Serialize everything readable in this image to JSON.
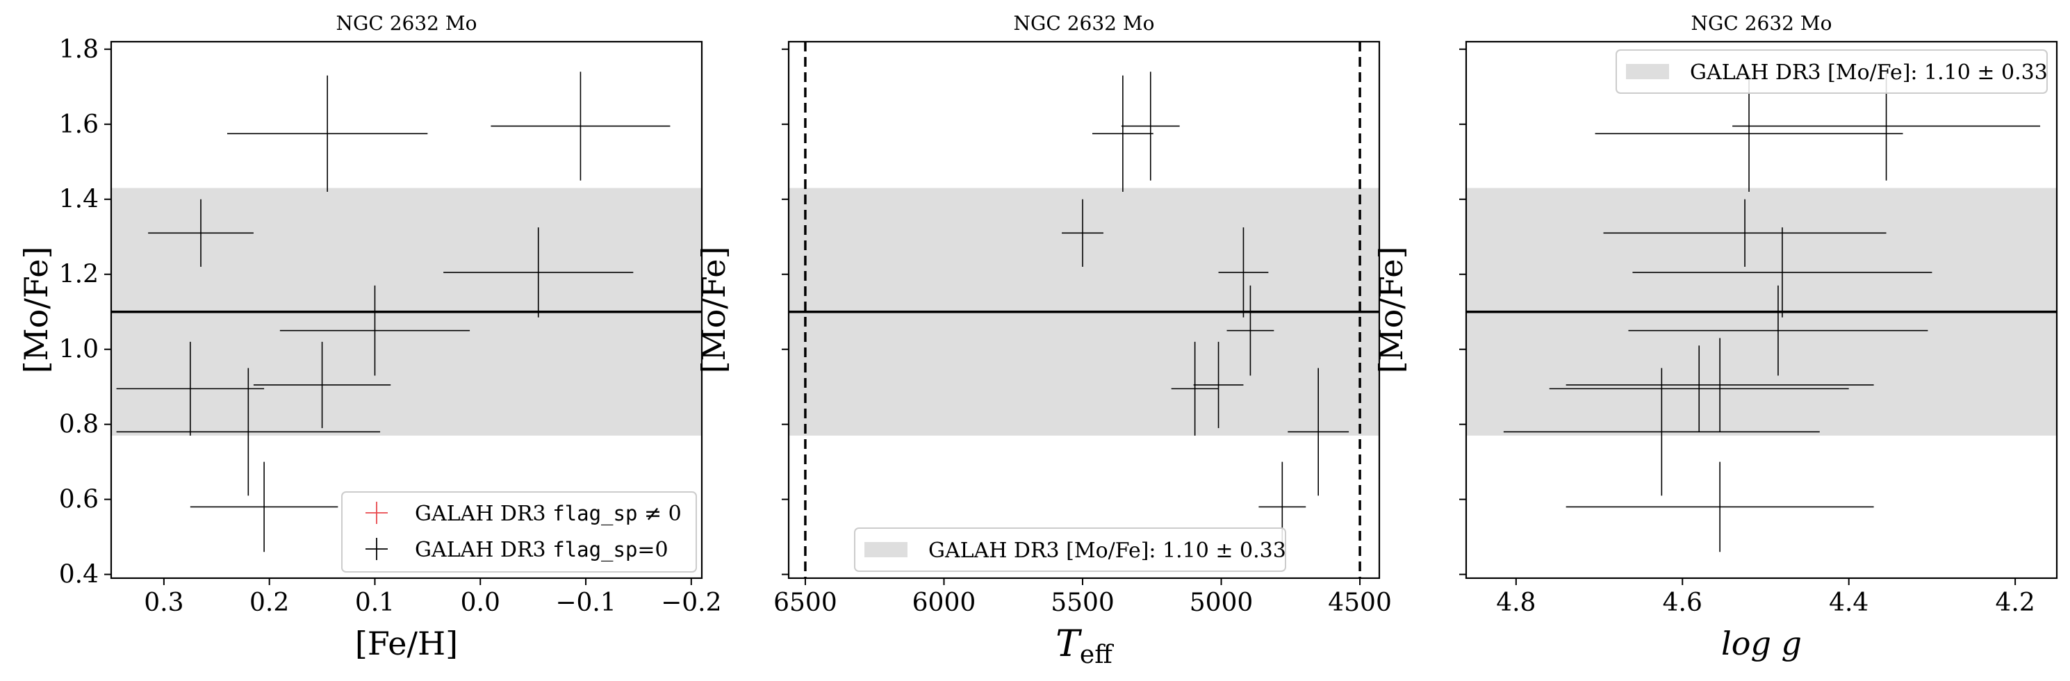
{
  "figure": {
    "colors": {
      "band": "#dedede",
      "errorbar": "#000000",
      "flagged": "#e8474b",
      "axis": "#000000",
      "mean_line": "#000000"
    }
  },
  "chart_data": [
    {
      "type": "scatter",
      "title": "NGC 2632 Mo",
      "xlabel": "[Fe/H]",
      "ylabel": "[Mo/Fe]",
      "xlim": [
        0.35,
        -0.21
      ],
      "ylim": [
        0.39,
        1.82
      ],
      "x_inverted": true,
      "xticks": [
        0.3,
        0.2,
        0.1,
        0.0,
        -0.1,
        -0.2
      ],
      "xtick_labels": [
        "0.3",
        "0.2",
        "0.1",
        "0.0",
        "−0.1",
        "−0.2"
      ],
      "yticks": [
        0.4,
        0.6,
        0.8,
        1.0,
        1.2,
        1.4,
        1.6,
        1.8
      ],
      "ytick_labels": [
        "0.4",
        "0.6",
        "0.8",
        "1.0",
        "1.2",
        "1.4",
        "1.6",
        "1.8"
      ],
      "band": {
        "center": 1.1,
        "err": 0.33
      },
      "mean_line": 1.1,
      "legend": {
        "position": "lower-right",
        "entries": [
          {
            "marker": "+",
            "color": "#e8474b",
            "label_prefix": "GALAH DR3 ",
            "label_code": "flag_sp",
            "label_suffix": " ≠ 0"
          },
          {
            "marker": "+",
            "color": "#000000",
            "label_prefix": "GALAH DR3 ",
            "label_code": "flag_sp",
            "label_suffix": "=0"
          }
        ]
      },
      "series": [
        {
          "name": "GALAH DR3 flag_sp=0",
          "points": [
            {
              "x": 0.145,
              "xerr": 0.095,
              "y": 1.575,
              "yerr": 0.155
            },
            {
              "x": -0.095,
              "xerr": 0.085,
              "y": 1.595,
              "yerr": 0.145
            },
            {
              "x": 0.265,
              "xerr": 0.05,
              "y": 1.31,
              "yerr": 0.09
            },
            {
              "x": -0.055,
              "xerr": 0.09,
              "y": 1.205,
              "yerr": 0.12
            },
            {
              "x": 0.1,
              "xerr": 0.09,
              "y": 1.05,
              "yerr": 0.12
            },
            {
              "x": 0.275,
              "xerr": 0.07,
              "y": 0.895,
              "yerr": 0.125
            },
            {
              "x": 0.15,
              "xerr": 0.065,
              "y": 0.905,
              "yerr": 0.115
            },
            {
              "x": 0.22,
              "xerr": 0.125,
              "y": 0.78,
              "yerr": 0.17
            },
            {
              "x": 0.205,
              "xerr": 0.07,
              "y": 0.58,
              "yerr": 0.12
            }
          ]
        }
      ]
    },
    {
      "type": "scatter",
      "title": "NGC 2632 Mo",
      "xlabel_main": "T",
      "xlabel_sub": "eff",
      "ylabel": "[Mo/Fe]",
      "xlim": [
        6560,
        4430
      ],
      "ylim": [
        0.39,
        1.82
      ],
      "x_inverted": true,
      "xticks": [
        6500,
        6000,
        5500,
        5000,
        4500
      ],
      "xtick_labels": [
        "6500",
        "6000",
        "5500",
        "5000",
        "4500"
      ],
      "yticks": [
        0.4,
        0.6,
        0.8,
        1.0,
        1.2,
        1.4,
        1.6,
        1.8
      ],
      "ytick_labels": [],
      "vlines": [
        6500,
        4500
      ],
      "band": {
        "center": 1.1,
        "err": 0.33
      },
      "mean_line": 1.1,
      "legend": {
        "position": "lower-center",
        "entries": [
          {
            "marker": "band",
            "color": "#dedede",
            "label_prefix": "GALAH DR3 [Mo/Fe]:  1.10 ± 0.33"
          }
        ]
      },
      "series": [
        {
          "name": "GALAH DR3 flag_sp=0",
          "points": [
            {
              "x": 5355,
              "xerr": 110,
              "y": 1.575,
              "yerr": 0.155
            },
            {
              "x": 5255,
              "xerr": 105,
              "y": 1.595,
              "yerr": 0.145
            },
            {
              "x": 5500,
              "xerr": 75,
              "y": 1.31,
              "yerr": 0.09
            },
            {
              "x": 4920,
              "xerr": 90,
              "y": 1.205,
              "yerr": 0.12
            },
            {
              "x": 4895,
              "xerr": 85,
              "y": 1.05,
              "yerr": 0.12
            },
            {
              "x": 5095,
              "xerr": 85,
              "y": 0.895,
              "yerr": 0.125
            },
            {
              "x": 5010,
              "xerr": 90,
              "y": 0.905,
              "yerr": 0.115
            },
            {
              "x": 4650,
              "xerr": 110,
              "y": 0.78,
              "yerr": 0.17
            },
            {
              "x": 4780,
              "xerr": 85,
              "y": 0.58,
              "yerr": 0.12
            }
          ]
        }
      ]
    },
    {
      "type": "scatter",
      "title": "NGC 2632 Mo",
      "xlabel": "log g",
      "ylabel": "[Mo/Fe]",
      "xlim": [
        4.86,
        4.15
      ],
      "ylim": [
        0.39,
        1.82
      ],
      "x_inverted": true,
      "xticks": [
        4.8,
        4.6,
        4.4,
        4.2
      ],
      "xtick_labels": [
        "4.8",
        "4.6",
        "4.4",
        "4.2"
      ],
      "yticks": [
        0.4,
        0.6,
        0.8,
        1.0,
        1.2,
        1.4,
        1.6,
        1.8
      ],
      "ytick_labels": [],
      "band": {
        "center": 1.1,
        "err": 0.33
      },
      "mean_line": 1.1,
      "legend": {
        "position": "upper-right",
        "entries": [
          {
            "marker": "band",
            "color": "#dedede",
            "label_prefix": "GALAH DR3 [Mo/Fe]:  1.10 ± 0.33"
          }
        ]
      },
      "series": [
        {
          "name": "GALAH DR3 flag_sp=0",
          "points": [
            {
              "x": 4.52,
              "xerr": 0.185,
              "y": 1.575,
              "yerr": 0.155
            },
            {
              "x": 4.355,
              "xerr": 0.185,
              "y": 1.595,
              "yerr": 0.145
            },
            {
              "x": 4.525,
              "xerr": 0.17,
              "y": 1.31,
              "yerr": 0.09
            },
            {
              "x": 4.48,
              "xerr": 0.18,
              "y": 1.205,
              "yerr": 0.12
            },
            {
              "x": 4.485,
              "xerr": 0.18,
              "y": 1.05,
              "yerr": 0.12
            },
            {
              "x": 4.555,
              "xerr": 0.185,
              "y": 0.905,
              "yerr": 0.125
            },
            {
              "x": 4.58,
              "xerr": 0.18,
              "y": 0.895,
              "yerr": 0.115
            },
            {
              "x": 4.625,
              "xerr": 0.19,
              "y": 0.78,
              "yerr": 0.17
            },
            {
              "x": 4.555,
              "xerr": 0.185,
              "y": 0.58,
              "yerr": 0.12
            }
          ]
        }
      ]
    }
  ]
}
